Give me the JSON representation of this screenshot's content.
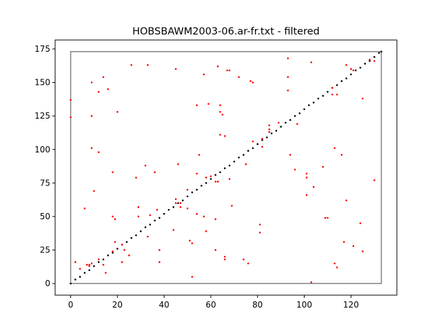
{
  "chart_data": {
    "type": "scatter",
    "title": "HOBSBAWM2003-06.ar-fr.txt - filtered",
    "xlim": [
      -6.65,
      139.65
    ],
    "ylim": [
      -8.65,
      181.65
    ],
    "xticks": [
      0,
      20,
      40,
      60,
      80,
      100,
      120
    ],
    "yticks": [
      0,
      25,
      50,
      75,
      100,
      125,
      150,
      175
    ],
    "series": [
      {
        "mode": "line",
        "color": "#808080",
        "x": [
          0,
          133,
          133,
          0,
          0
        ],
        "y": [
          0,
          0,
          173,
          173,
          0
        ]
      },
      {
        "mode": "points",
        "color": "#000000",
        "x": [
          0,
          2,
          4,
          6,
          8,
          10,
          12,
          14,
          16,
          18,
          20,
          22,
          24,
          26,
          28,
          30,
          32,
          34,
          36,
          38,
          40,
          42,
          44,
          46,
          48,
          50,
          52,
          54,
          56,
          58,
          60,
          62,
          64,
          66,
          68,
          70,
          72,
          74,
          76,
          78,
          80,
          82,
          84,
          86,
          88,
          90,
          92,
          94,
          96,
          98,
          100,
          102,
          104,
          106,
          108,
          110,
          112,
          114,
          116,
          118,
          120,
          122,
          124,
          126,
          128,
          130,
          132,
          133
        ],
        "y": [
          0,
          3,
          5,
          8,
          10,
          13,
          16,
          18,
          21,
          23,
          26,
          29,
          31,
          34,
          36,
          39,
          42,
          44,
          47,
          49,
          52,
          55,
          57,
          60,
          62,
          65,
          68,
          70,
          73,
          75,
          78,
          81,
          83,
          86,
          88,
          91,
          94,
          96,
          99,
          101,
          104,
          107,
          109,
          112,
          114,
          117,
          120,
          122,
          125,
          127,
          130,
          133,
          135,
          138,
          140,
          143,
          146,
          148,
          151,
          153,
          156,
          159,
          161,
          164,
          166,
          169,
          172,
          173
        ]
      },
      {
        "mode": "points",
        "color": "#ff0000",
        "x": [
          0,
          0,
          9,
          9,
          14,
          12,
          16,
          26,
          33,
          45,
          57,
          63,
          67,
          68,
          72,
          77,
          78,
          93,
          103,
          93,
          93,
          118,
          120,
          121,
          128,
          130,
          112,
          112,
          114,
          125,
          20,
          54,
          59,
          64,
          64,
          65,
          64,
          66,
          78,
          89,
          97,
          94,
          85,
          82,
          9,
          12,
          55,
          46,
          32,
          36,
          18,
          28,
          54,
          58,
          60,
          62,
          63,
          63,
          68,
          75,
          96,
          101,
          101,
          104,
          101,
          108,
          116,
          113,
          130,
          10,
          6,
          29,
          29,
          18,
          19,
          34,
          37,
          44,
          33,
          50,
          54,
          57,
          62,
          69,
          58,
          81,
          81,
          109,
          110,
          118,
          124,
          2,
          4,
          7,
          8,
          9,
          8,
          12,
          14,
          15,
          18,
          19,
          22,
          23,
          22,
          25,
          38,
          38,
          51,
          52,
          52,
          62,
          66,
          66,
          74,
          76,
          103,
          113,
          114,
          117,
          121,
          125,
          45,
          45,
          47,
          47,
          50,
          85,
          85,
          82
        ],
        "y": [
          137,
          124,
          150,
          125,
          154,
          143,
          145,
          163,
          163,
          160,
          156,
          162,
          159,
          159,
          154,
          151,
          150,
          168,
          165,
          154,
          144,
          163,
          160,
          159,
          167,
          166,
          146,
          141,
          141,
          138,
          128,
          133,
          134,
          133,
          128,
          126,
          111,
          110,
          106,
          120,
          119,
          96,
          118,
          102,
          101,
          98,
          96,
          89,
          88,
          83,
          83,
          79,
          82,
          79,
          80,
          76,
          76,
          76,
          78,
          89,
          85,
          82,
          79,
          72,
          66,
          87,
          96,
          101,
          77,
          69,
          56,
          57,
          50,
          50,
          48,
          51,
          55,
          40,
          35,
          56,
          52,
          50,
          48,
          58,
          39,
          44,
          38,
          49,
          49,
          62,
          45,
          16,
          11,
          14,
          14,
          15,
          13,
          18,
          14,
          8,
          24,
          31,
          29,
          25,
          16,
          21,
          25,
          16,
          32,
          30,
          5,
          25,
          20,
          18,
          18,
          15,
          1,
          15,
          12,
          31,
          28,
          24,
          60,
          63,
          60,
          57,
          70,
          115,
          113,
          108
        ]
      }
    ]
  }
}
